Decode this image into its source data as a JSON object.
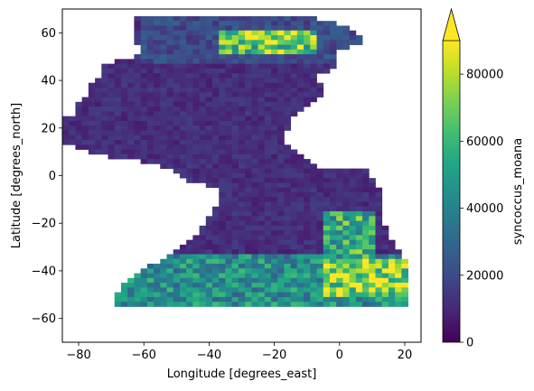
{
  "chart_data": {
    "type": "heatmap",
    "title": "",
    "xlabel": "Longitude [degrees_east]",
    "ylabel": "Latitude [degrees_north]",
    "xlim": [
      -85,
      25
    ],
    "ylim": [
      -70,
      70
    ],
    "x_ticks": [
      "−80",
      "−60",
      "−40",
      "−20",
      "0",
      "20"
    ],
    "y_ticks": [
      "−60",
      "−40",
      "−20",
      "0",
      "20",
      "40",
      "60"
    ],
    "x_tick_values": [
      -80,
      -60,
      -40,
      -20,
      0,
      20
    ],
    "y_tick_values": [
      -60,
      -40,
      -20,
      0,
      20,
      40,
      60
    ],
    "grid": false,
    "colormap": "viridis",
    "colorbar": {
      "label": "syncoccus_moana",
      "vmin": 0,
      "vmax": 90000,
      "extend": "max",
      "ticks": [
        "0",
        "20000",
        "40000",
        "60000",
        "80000"
      ],
      "tick_values": [
        0,
        20000,
        40000,
        60000,
        80000
      ]
    },
    "regions": [
      {
        "lon": [
          -62,
          12
        ],
        "lat": [
          48,
          67
        ],
        "level": 0.25
      },
      {
        "lon": [
          -38,
          -8
        ],
        "lat": [
          52,
          62
        ],
        "level": 0.85
      },
      {
        "lon": [
          -5,
          10
        ],
        "lat": [
          -34,
          -15
        ],
        "level": 0.7
      },
      {
        "lon": [
          -70,
          20
        ],
        "lat": [
          -53,
          -32
        ],
        "level": 0.55
      },
      {
        "lon": [
          -5,
          20
        ],
        "lat": [
          -50,
          -35
        ],
        "level": 0.95
      }
    ]
  }
}
